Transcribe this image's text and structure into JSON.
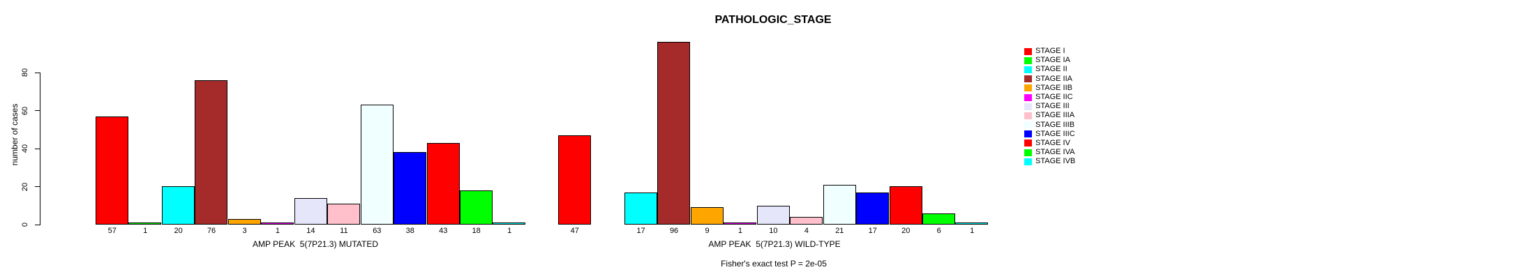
{
  "chart_data": {
    "type": "bar",
    "title": "PATHOLOGIC_STAGE",
    "ylabel": "number of cases",
    "annotation": "Fisher's exact test P = 2e-05",
    "ylim": [
      0,
      80
    ],
    "yticks": [
      0,
      20,
      40,
      60,
      80
    ],
    "grid": false,
    "legend_position": "top-right",
    "categories": [
      "STAGE I",
      "STAGE IA",
      "STAGE II",
      "STAGE IIA",
      "STAGE IIB",
      "STAGE IIC",
      "STAGE III",
      "STAGE IIIA",
      "STAGE IIIB",
      "STAGE IIIC",
      "STAGE IV",
      "STAGE IVA",
      "STAGE IVB"
    ],
    "colors": [
      "#FF0000",
      "#00FF00",
      "#00FFFF",
      "#A52A2A",
      "#FFA500",
      "#FF00FF",
      "#E6E6FA",
      "#FFC0CB",
      "#F0FFFF",
      "#0000FF",
      "#FF0000",
      "#00FF00",
      "#00FFFF"
    ],
    "panels": [
      {
        "xlabel": "AMP PEAK  5(7P21.3) MUTATED",
        "values": [
          57,
          1,
          20,
          76,
          3,
          1,
          14,
          11,
          63,
          38,
          43,
          18,
          1
        ],
        "bar_labels": [
          "57",
          "1",
          "20",
          "76",
          "3",
          "1",
          "14",
          "11",
          "63",
          "38",
          "43",
          "18",
          "1"
        ]
      },
      {
        "xlabel": "AMP PEAK  5(7P21.3) WILD-TYPE",
        "values": [
          47,
          0,
          17,
          96,
          9,
          1,
          10,
          4,
          21,
          17,
          20,
          6,
          1
        ],
        "bar_labels": [
          "47",
          "",
          "17",
          "96",
          "9",
          "1",
          "10",
          "4",
          "21",
          "17",
          "20",
          "6",
          "1"
        ]
      }
    ],
    "legend": [
      {
        "label": "STAGE I",
        "color": "#FF0000"
      },
      {
        "label": "STAGE IA",
        "color": "#00FF00"
      },
      {
        "label": "STAGE II",
        "color": "#00FFFF"
      },
      {
        "label": "STAGE IIA",
        "color": "#A52A2A"
      },
      {
        "label": "STAGE IIB",
        "color": "#FFA500"
      },
      {
        "label": "STAGE IIC",
        "color": "#FF00FF"
      },
      {
        "label": "STAGE III",
        "color": "#E6E6FA"
      },
      {
        "label": "STAGE IIIA",
        "color": "#FFC0CB"
      },
      {
        "label": "STAGE IIIB",
        "color": "#F0FFFF"
      },
      {
        "label": "STAGE IIIC",
        "color": "#0000FF"
      },
      {
        "label": "STAGE IV",
        "color": "#FF0000"
      },
      {
        "label": "STAGE IVA",
        "color": "#00FF00"
      },
      {
        "label": "STAGE IVB",
        "color": "#00FFFF"
      }
    ]
  }
}
